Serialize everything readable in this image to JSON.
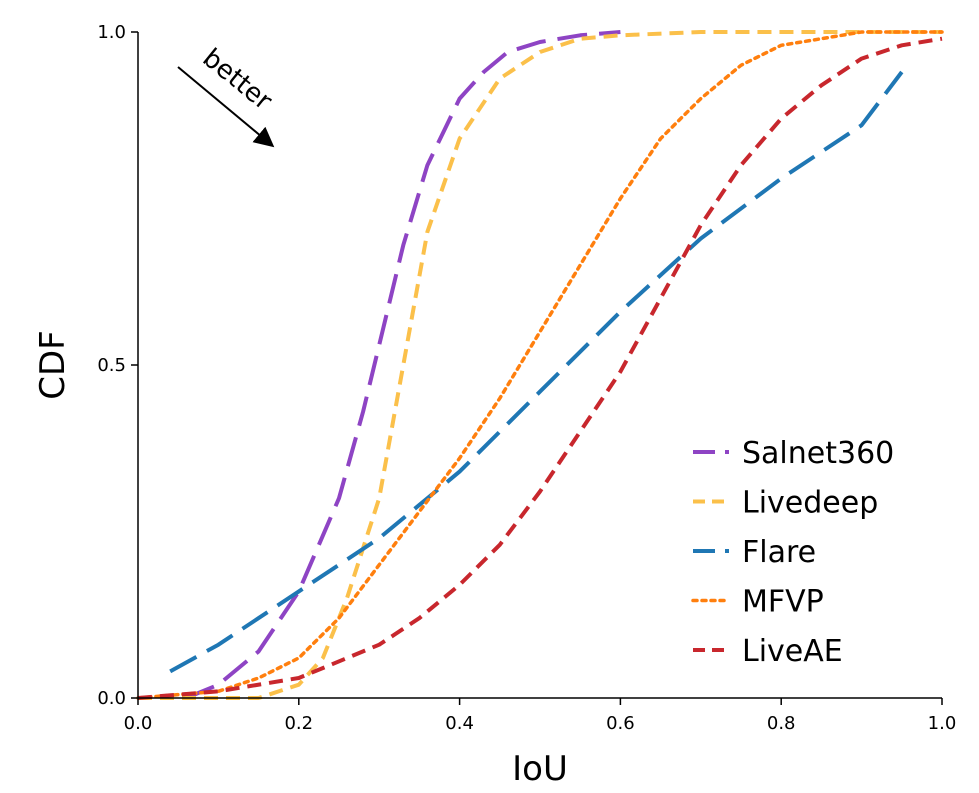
{
  "chart_data": {
    "type": "line",
    "title": "",
    "xlabel": "IoU",
    "ylabel": "CDF",
    "xlim": [
      0.0,
      1.0
    ],
    "ylim": [
      0.0,
      1.0
    ],
    "xticks": [
      "0.0",
      "0.2",
      "0.4",
      "0.6",
      "0.8",
      "1.0"
    ],
    "yticks": [
      "0.0",
      "0.5",
      "1.0"
    ],
    "grid": false,
    "legend_position": "lower-right",
    "annotation": {
      "text": "better",
      "arrow": "pointing down-right"
    },
    "series": [
      {
        "name": "Salnet360",
        "color": "#8e44c4",
        "style": "long-dash",
        "x": [
          0.06,
          0.1,
          0.15,
          0.2,
          0.25,
          0.28,
          0.3,
          0.33,
          0.36,
          0.4,
          0.43,
          0.46,
          0.5,
          0.55,
          0.6
        ],
        "y": [
          0.0,
          0.02,
          0.07,
          0.16,
          0.3,
          0.43,
          0.53,
          0.68,
          0.8,
          0.9,
          0.94,
          0.97,
          0.985,
          0.995,
          1.0
        ]
      },
      {
        "name": "Livedeep",
        "color": "#fbc04a",
        "style": "dash",
        "x": [
          0.0,
          0.15,
          0.2,
          0.23,
          0.26,
          0.3,
          0.33,
          0.36,
          0.4,
          0.45,
          0.5,
          0.55,
          0.6,
          0.7,
          1.0
        ],
        "y": [
          0.0,
          0.0,
          0.02,
          0.06,
          0.15,
          0.3,
          0.5,
          0.7,
          0.84,
          0.93,
          0.97,
          0.99,
          0.995,
          1.0,
          1.0
        ]
      },
      {
        "name": "Flare",
        "color": "#1f77b4",
        "style": "long-dash",
        "x": [
          0.04,
          0.1,
          0.15,
          0.2,
          0.3,
          0.4,
          0.5,
          0.6,
          0.7,
          0.8,
          0.9,
          0.95
        ],
        "y": [
          0.04,
          0.08,
          0.12,
          0.16,
          0.24,
          0.34,
          0.46,
          0.58,
          0.69,
          0.78,
          0.86,
          0.94
        ]
      },
      {
        "name": "MFVP",
        "color": "#ff7f0e",
        "style": "dotted",
        "x": [
          0.0,
          0.1,
          0.15,
          0.2,
          0.25,
          0.3,
          0.35,
          0.4,
          0.45,
          0.5,
          0.55,
          0.6,
          0.65,
          0.7,
          0.75,
          0.8,
          0.85,
          0.9,
          0.95,
          1.0
        ],
        "y": [
          0.0,
          0.01,
          0.03,
          0.06,
          0.12,
          0.2,
          0.28,
          0.36,
          0.45,
          0.55,
          0.65,
          0.75,
          0.84,
          0.9,
          0.95,
          0.98,
          0.99,
          1.0,
          1.0,
          1.0
        ]
      },
      {
        "name": "LiveAE",
        "color": "#c8272d",
        "style": "dash",
        "x": [
          0.0,
          0.1,
          0.2,
          0.3,
          0.35,
          0.4,
          0.45,
          0.5,
          0.55,
          0.6,
          0.65,
          0.7,
          0.75,
          0.8,
          0.85,
          0.9,
          0.95,
          1.0
        ],
        "y": [
          0.0,
          0.01,
          0.03,
          0.08,
          0.12,
          0.17,
          0.23,
          0.31,
          0.4,
          0.49,
          0.6,
          0.71,
          0.8,
          0.87,
          0.92,
          0.96,
          0.98,
          0.99
        ]
      }
    ]
  }
}
